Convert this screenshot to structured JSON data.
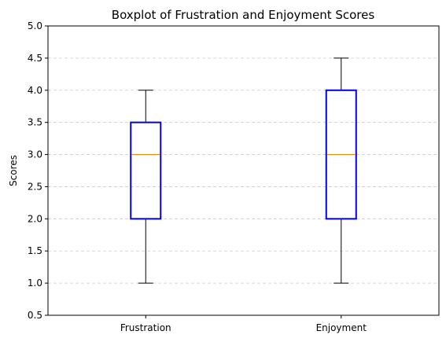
{
  "chart_data": {
    "type": "boxplot",
    "title": "Boxplot of Frustration and Enjoyment Scores",
    "xlabel": "",
    "ylabel": "Scores",
    "ylim": [
      0.5,
      5.0
    ],
    "yticks": [
      "0.5",
      "1.0",
      "1.5",
      "2.0",
      "2.5",
      "3.0",
      "3.5",
      "4.0",
      "4.5",
      "5.0"
    ],
    "grid": "horizontal-dashed",
    "categories": [
      "Frustration",
      "Enjoyment"
    ],
    "boxes": [
      {
        "category": "Frustration",
        "whisker_low": 1.0,
        "q1": 2.0,
        "median": 3.0,
        "q3": 3.5,
        "whisker_high": 4.0
      },
      {
        "category": "Enjoyment",
        "whisker_low": 1.0,
        "q1": 2.0,
        "median": 3.0,
        "q3": 4.0,
        "whisker_high": 4.5
      }
    ],
    "colors": {
      "box": "#0000ee",
      "median": "#ff7f0e",
      "whisker": "#000000",
      "grid": "#cccccc"
    }
  }
}
